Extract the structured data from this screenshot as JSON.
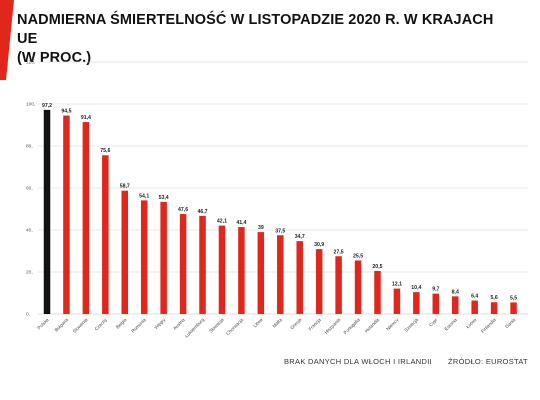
{
  "header": {
    "title_line1": "NADMIERNA ŚMIERTELNOŚĆ W LISTOPADZIE 2020 R. W KRAJACH UE",
    "title_line2": "(W PROC.)"
  },
  "footer": {
    "note": "BRAK DANYCH DLA WŁOCH I IRLANDII",
    "source": "ŹRÓDŁO: EUROSTAT"
  },
  "colors": {
    "highlight": "#111111",
    "bar": "#e1261c",
    "corner": "#e1261c",
    "grid": "#d6d6d6"
  },
  "chart_data": {
    "type": "bar",
    "title": "NADMIERNA ŚMIERTELNOŚĆ W LISTOPADZIE 2020 R. W KRAJACH UE (W PROC.)",
    "xlabel": "",
    "ylabel": "",
    "ylim": [
      0,
      120
    ],
    "yticks": [
      0,
      20,
      40,
      60,
      80,
      100,
      120
    ],
    "ytick_labels": [
      "0,",
      "20,",
      "40,",
      "60,",
      "80,",
      "100,",
      "120,"
    ],
    "grid": true,
    "legend": "none",
    "highlight_category": "Polska",
    "categories": [
      "Polska",
      "Bułgaria",
      "Słowenia",
      "Czechy",
      "Belgia",
      "Rumunia",
      "Węgry",
      "Austria",
      "Luksemburg",
      "Słowacja",
      "Chorwacja",
      "Litwa",
      "Malta",
      "Grecja",
      "Francja",
      "Hiszpania",
      "Portugalia",
      "Holandia",
      "Niemcy",
      "Szwecja",
      "Cypr",
      "Estonia",
      "Łotwa",
      "Finlandia",
      "Dania"
    ],
    "values": [
      97.2,
      94.5,
      91.4,
      75.6,
      58.7,
      54.1,
      53.4,
      47.6,
      46.7,
      42.1,
      41.4,
      39,
      37.5,
      34.7,
      30.9,
      27.5,
      25.5,
      20.5,
      12.1,
      10.4,
      9.7,
      8.4,
      6.4,
      5.6,
      5.5
    ],
    "value_labels": [
      "97,2",
      "94,5",
      "91,4",
      "75,6",
      "58,7",
      "54,1",
      "53,4",
      "47,6",
      "46,7",
      "42,1",
      "41,4",
      "39",
      "37,5",
      "34,7",
      "30,9",
      "27,5",
      "25,5",
      "20,5",
      "12,1",
      "10,4",
      "9,7",
      "8,4",
      "6,4",
      "5,6",
      "5,5"
    ]
  }
}
